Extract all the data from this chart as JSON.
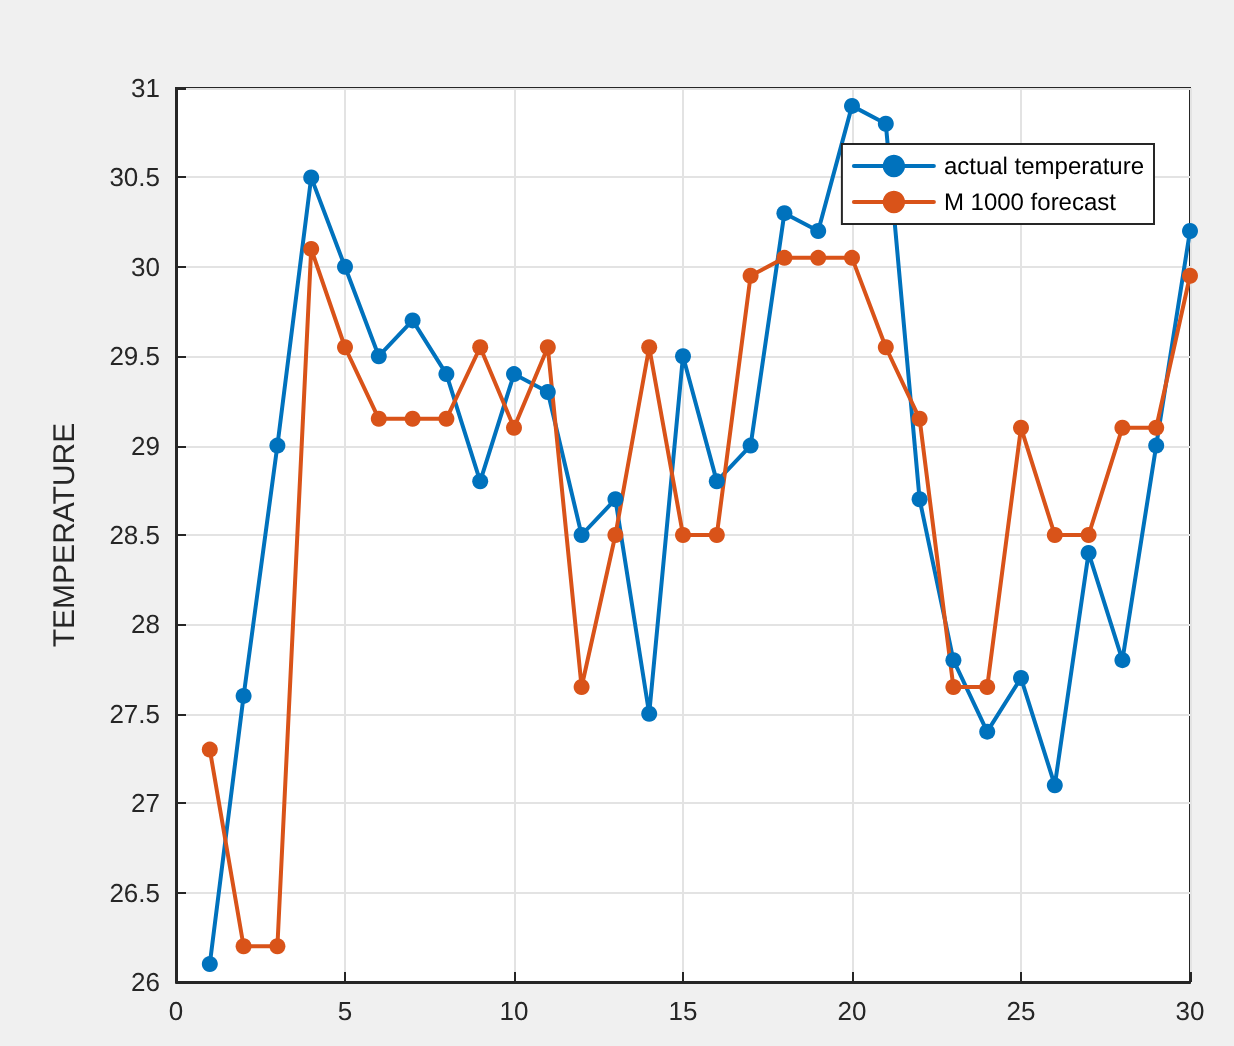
{
  "chart_data": {
    "type": "line",
    "ylabel": "TEMPERATURE",
    "x": [
      1,
      2,
      3,
      4,
      5,
      6,
      7,
      8,
      9,
      10,
      11,
      12,
      13,
      14,
      15,
      16,
      17,
      18,
      19,
      20,
      21,
      22,
      23,
      24,
      25,
      26,
      27,
      28,
      29,
      30
    ],
    "series": [
      {
        "name": "actual temperature",
        "color": "#0072bd",
        "values": [
          26.1,
          27.6,
          29.0,
          30.5,
          30.0,
          29.5,
          29.7,
          29.4,
          28.8,
          29.4,
          29.3,
          28.5,
          28.7,
          27.5,
          29.5,
          28.8,
          29.0,
          30.3,
          30.2,
          30.9,
          30.8,
          28.7,
          27.8,
          27.4,
          27.7,
          27.1,
          28.4,
          27.8,
          29.0,
          30.2
        ]
      },
      {
        "name": "M 1000 forecast",
        "color": "#d95319",
        "values": [
          27.3,
          26.2,
          26.2,
          30.1,
          29.55,
          29.15,
          29.15,
          29.15,
          29.55,
          29.1,
          29.55,
          27.65,
          28.5,
          29.55,
          28.5,
          28.5,
          29.95,
          30.05,
          30.05,
          30.05,
          29.55,
          29.15,
          27.65,
          27.65,
          29.1,
          28.5,
          28.5,
          29.1,
          29.1,
          29.95
        ]
      }
    ],
    "xlim": [
      0,
      30
    ],
    "xticks": [
      0,
      5,
      10,
      15,
      20,
      25,
      30
    ],
    "ylim": [
      26,
      31
    ],
    "yticks": [
      26,
      26.5,
      27,
      27.5,
      28,
      28.5,
      29,
      29.5,
      30,
      30.5,
      31
    ],
    "grid": true,
    "legend": "top right",
    "marker": "circle",
    "line_style": "solid"
  }
}
